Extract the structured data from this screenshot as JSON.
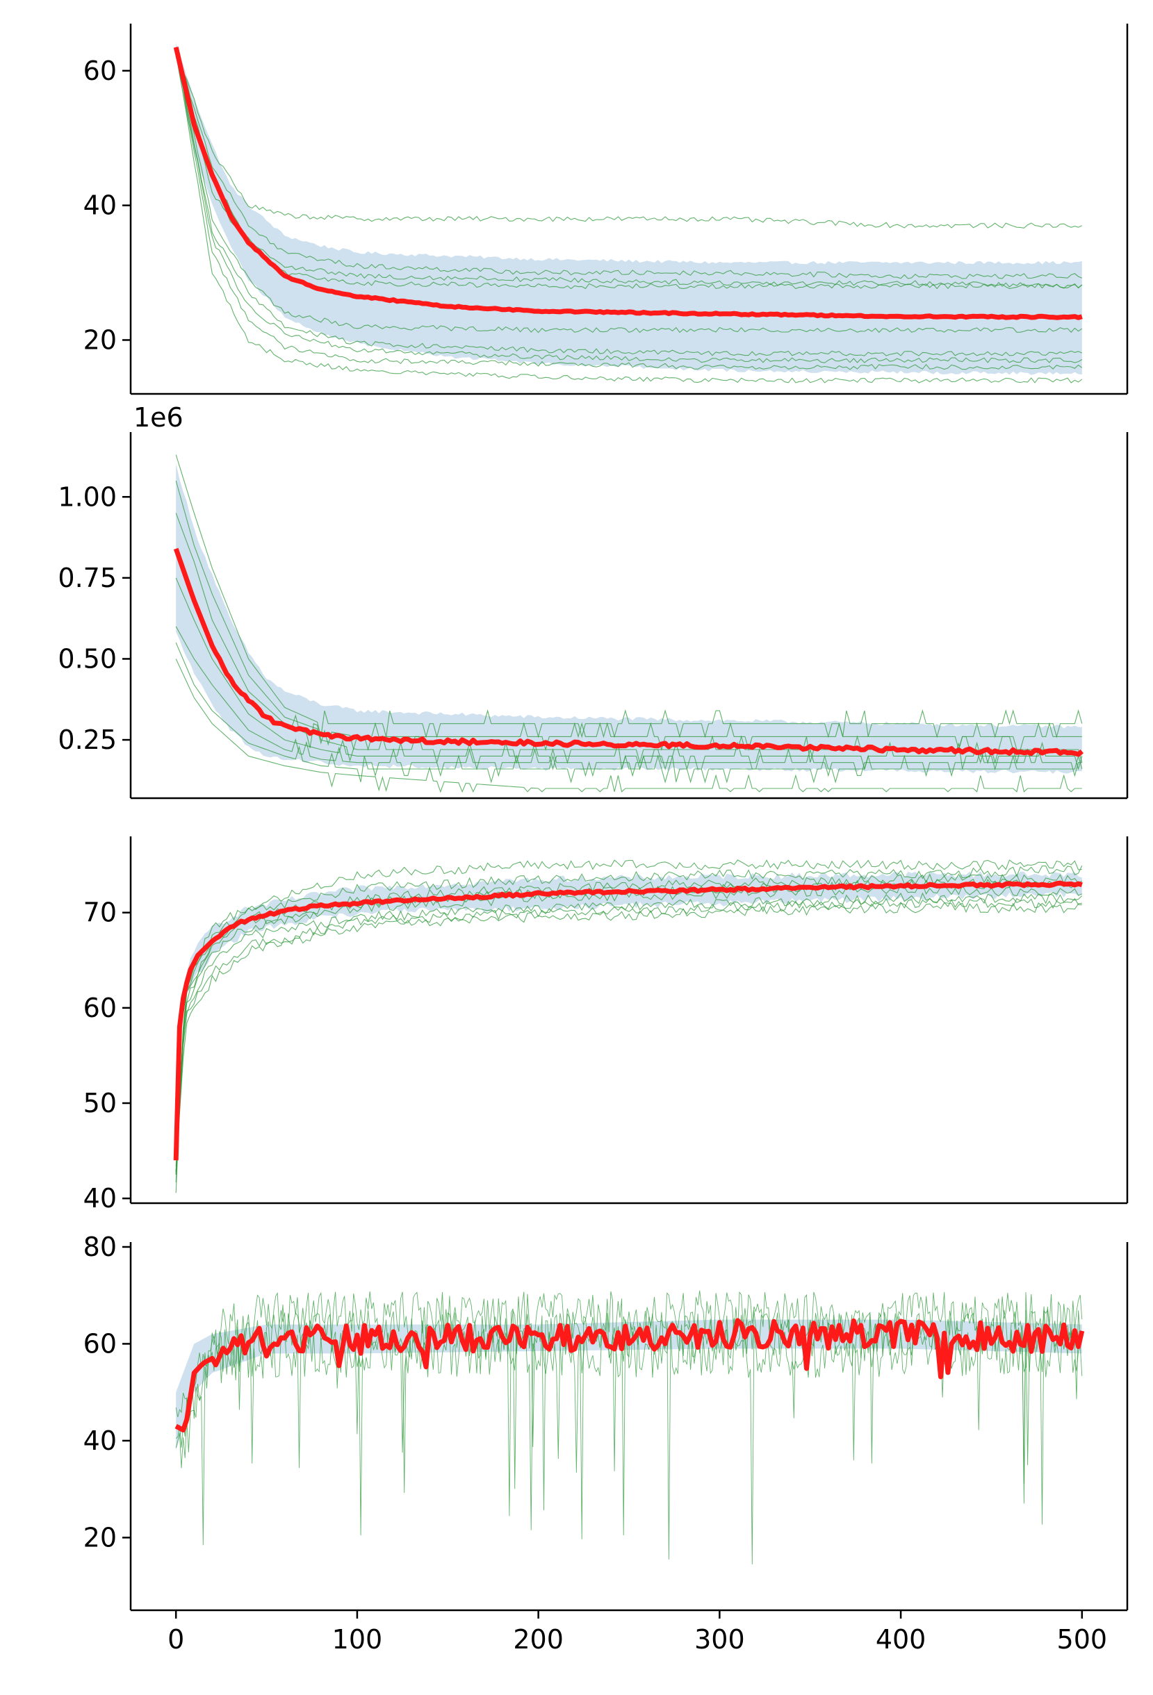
{
  "colors": {
    "mean_line": "#ff1a1a",
    "band": "#a8c6e0",
    "runs": "#2e9a3a",
    "axis": "#000000"
  },
  "chart_data": [
    {
      "type": "line",
      "panel": 1,
      "x_range": [
        -25,
        525
      ],
      "ylim": [
        12,
        67
      ],
      "yticks": [
        20,
        40,
        60
      ],
      "ytick_labels": [
        "20",
        "40",
        "60"
      ],
      "xticks_visible": false,
      "series": [
        {
          "role": "mean",
          "x": [
            0,
            10,
            20,
            30,
            40,
            60,
            80,
            100,
            150,
            200,
            300,
            400,
            500
          ],
          "values": [
            63.5,
            52,
            44.5,
            38.5,
            34.5,
            29.5,
            27.5,
            26.5,
            25,
            24.3,
            23.9,
            23.5,
            23.4
          ]
        }
      ],
      "band": {
        "x": [
          0,
          10,
          20,
          30,
          40,
          60,
          80,
          100,
          150,
          200,
          300,
          400,
          500
        ],
        "upper": [
          64,
          56,
          49,
          43,
          40,
          35.5,
          34,
          33,
          32.5,
          32,
          31.5,
          31.5,
          31.5
        ],
        "lower": [
          62,
          48,
          40,
          34,
          29,
          23.5,
          21,
          19.5,
          17.5,
          16.5,
          15.5,
          15.2,
          15
        ]
      },
      "runs": [
        {
          "x": [
            0,
            20,
            40,
            60,
            100,
            200,
            300,
            400,
            500
          ],
          "values": [
            63,
            48,
            40,
            38.5,
            38,
            38,
            38,
            37,
            37
          ]
        },
        {
          "x": [
            0,
            20,
            40,
            60,
            100,
            200,
            300,
            400,
            500
          ],
          "values": [
            63,
            46,
            37,
            33,
            31,
            30,
            30,
            29.5,
            29.5
          ]
        },
        {
          "x": [
            0,
            20,
            40,
            60,
            100,
            200,
            300,
            400,
            500
          ],
          "values": [
            63,
            44,
            35,
            31,
            29.5,
            29,
            28.5,
            28.5,
            28
          ]
        },
        {
          "x": [
            0,
            20,
            40,
            60,
            100,
            200,
            300,
            400,
            500
          ],
          "values": [
            63,
            42,
            34,
            30,
            28.5,
            28,
            28,
            28,
            28
          ]
        },
        {
          "x": [
            0,
            20,
            40,
            60,
            100,
            200,
            300,
            400,
            500
          ],
          "values": [
            63,
            38,
            29,
            24,
            22,
            21.5,
            21.5,
            21.5,
            21.5
          ]
        },
        {
          "x": [
            0,
            20,
            40,
            60,
            100,
            200,
            300,
            400,
            500
          ],
          "values": [
            63,
            36,
            27,
            22,
            19.5,
            18.5,
            18,
            18,
            18
          ]
        },
        {
          "x": [
            0,
            20,
            40,
            60,
            100,
            200,
            300,
            400,
            500
          ],
          "values": [
            63,
            35,
            25,
            21,
            18.5,
            17.5,
            17,
            17,
            17
          ]
        },
        {
          "x": [
            0,
            20,
            40,
            60,
            100,
            200,
            300,
            400,
            500
          ],
          "values": [
            63,
            33,
            23,
            19,
            17,
            16.5,
            16,
            16,
            16
          ]
        },
        {
          "x": [
            0,
            20,
            40,
            60,
            100,
            200,
            300,
            400,
            500
          ],
          "values": [
            63,
            30,
            20,
            17,
            15.5,
            14.5,
            14,
            14,
            14
          ]
        }
      ]
    },
    {
      "type": "line",
      "panel": 2,
      "x_range": [
        -25,
        525
      ],
      "ylim": [
        0.07,
        1.2
      ],
      "yticks": [
        0.25,
        0.5,
        0.75,
        1.0
      ],
      "ytick_labels": [
        "0.25",
        "0.50",
        "0.75",
        "1.00"
      ],
      "offset_text": "1e6",
      "xticks_visible": false,
      "series": [
        {
          "role": "mean",
          "x": [
            0,
            10,
            20,
            30,
            40,
            50,
            60,
            80,
            100,
            150,
            200,
            300,
            400,
            500
          ],
          "values": [
            0.84,
            0.68,
            0.54,
            0.44,
            0.37,
            0.32,
            0.29,
            0.265,
            0.255,
            0.245,
            0.24,
            0.232,
            0.22,
            0.21
          ]
        },
        {
          "role": "noise",
          "x": [
            100,
            150,
            200,
            300,
            400,
            500
          ],
          "values": [
            0.255,
            0.245,
            0.24,
            0.232,
            0.22,
            0.21
          ]
        }
      ],
      "band": {
        "x": [
          0,
          10,
          20,
          30,
          40,
          50,
          60,
          80,
          100,
          150,
          200,
          300,
          400,
          500
        ],
        "upper": [
          1.1,
          0.9,
          0.76,
          0.62,
          0.52,
          0.44,
          0.4,
          0.36,
          0.34,
          0.33,
          0.32,
          0.31,
          0.3,
          0.29
        ],
        "lower": [
          0.58,
          0.46,
          0.36,
          0.28,
          0.23,
          0.2,
          0.19,
          0.18,
          0.17,
          0.165,
          0.16,
          0.16,
          0.155,
          0.15
        ]
      },
      "runs": [
        {
          "x": [
            0,
            10,
            20,
            40,
            60,
            80,
            100,
            200,
            300,
            400,
            500
          ],
          "values": [
            1.13,
            0.95,
            0.78,
            0.5,
            0.35,
            0.3,
            0.3,
            0.3,
            0.3,
            0.3,
            0.3
          ]
        },
        {
          "x": [
            0,
            10,
            20,
            40,
            60,
            80,
            100,
            200,
            300,
            400,
            500
          ],
          "values": [
            1.05,
            0.85,
            0.7,
            0.45,
            0.32,
            0.28,
            0.26,
            0.26,
            0.26,
            0.26,
            0.26
          ]
        },
        {
          "x": [
            0,
            10,
            20,
            40,
            60,
            80,
            100,
            200,
            300,
            400,
            500
          ],
          "values": [
            0.95,
            0.8,
            0.62,
            0.4,
            0.3,
            0.25,
            0.22,
            0.22,
            0.22,
            0.22,
            0.22
          ]
        },
        {
          "x": [
            0,
            10,
            20,
            40,
            60,
            80,
            100,
            200,
            300,
            400,
            500
          ],
          "values": [
            0.75,
            0.62,
            0.5,
            0.33,
            0.25,
            0.22,
            0.2,
            0.2,
            0.2,
            0.2,
            0.2
          ]
        },
        {
          "x": [
            0,
            10,
            20,
            40,
            60,
            80,
            100,
            200,
            300,
            400,
            500
          ],
          "values": [
            0.6,
            0.5,
            0.42,
            0.28,
            0.22,
            0.19,
            0.18,
            0.18,
            0.18,
            0.18,
            0.18
          ]
        },
        {
          "x": [
            0,
            10,
            20,
            40,
            60,
            80,
            100,
            200,
            300,
            400,
            500
          ],
          "values": [
            0.55,
            0.42,
            0.34,
            0.24,
            0.2,
            0.17,
            0.16,
            0.16,
            0.16,
            0.16,
            0.16
          ]
        },
        {
          "x": [
            0,
            10,
            20,
            40,
            60,
            80,
            100,
            200,
            300,
            400,
            500
          ],
          "values": [
            0.5,
            0.38,
            0.3,
            0.2,
            0.17,
            0.15,
            0.14,
            0.1,
            0.1,
            0.1,
            0.1
          ]
        }
      ]
    },
    {
      "type": "line",
      "panel": 3,
      "x_range": [
        -25,
        525
      ],
      "ylim": [
        39.5,
        78
      ],
      "yticks": [
        40,
        50,
        60,
        70
      ],
      "ytick_labels": [
        "40",
        "50",
        "60",
        "70"
      ],
      "xticks_visible": false,
      "series": [
        {
          "role": "mean",
          "x": [
            0,
            1,
            2,
            3,
            5,
            8,
            12,
            20,
            30,
            40,
            60,
            80,
            100,
            150,
            200,
            250,
            300,
            350,
            400,
            450,
            500
          ],
          "values": [
            44,
            54,
            58,
            60,
            62,
            64,
            65.5,
            67,
            68.5,
            69.3,
            70.2,
            70.7,
            71,
            71.5,
            72,
            72.2,
            72.4,
            72.6,
            72.8,
            72.9,
            73
          ]
        }
      ],
      "band": {
        "x": [
          0,
          3,
          8,
          20,
          40,
          80,
          100,
          200,
          300,
          400,
          500
        ],
        "upper": [
          45,
          61,
          65.5,
          68.5,
          70.5,
          72,
          72.5,
          73.5,
          73.8,
          74,
          74
        ],
        "lower": [
          43,
          59,
          62.5,
          65.5,
          68,
          69.5,
          70,
          70.5,
          71,
          71.5,
          72
        ]
      },
      "runs": [
        {
          "x": [
            0,
            5,
            20,
            40,
            100,
            200,
            300,
            400,
            500
          ],
          "values": [
            41,
            62,
            68.5,
            70.5,
            74,
            75,
            75,
            75,
            75
          ]
        },
        {
          "x": [
            0,
            5,
            20,
            40,
            100,
            200,
            300,
            400,
            500
          ],
          "values": [
            42,
            61.5,
            67.5,
            70,
            72.5,
            73.5,
            74,
            74,
            74.5
          ]
        },
        {
          "x": [
            0,
            5,
            20,
            40,
            100,
            200,
            300,
            400,
            500
          ],
          "values": [
            43,
            61,
            67,
            69.5,
            71.5,
            72.5,
            73,
            73.5,
            73.5
          ]
        },
        {
          "x": [
            0,
            5,
            20,
            40,
            100,
            200,
            300,
            400,
            500
          ],
          "values": [
            43,
            60.5,
            66.5,
            69,
            71,
            72,
            72.5,
            73,
            73
          ]
        },
        {
          "x": [
            0,
            5,
            20,
            40,
            100,
            200,
            300,
            400,
            500
          ],
          "values": [
            43,
            60,
            66,
            68.5,
            70.5,
            71.5,
            72,
            72.5,
            72
          ]
        },
        {
          "x": [
            0,
            5,
            20,
            40,
            100,
            200,
            300,
            400,
            500
          ],
          "values": [
            43,
            59.5,
            65,
            67.5,
            69.5,
            70.5,
            71,
            71.5,
            71.5
          ]
        },
        {
          "x": [
            0,
            5,
            20,
            40,
            100,
            200,
            300,
            400,
            500
          ],
          "values": [
            43,
            59,
            64,
            66.5,
            69,
            70,
            70.5,
            71,
            71
          ]
        },
        {
          "x": [
            0,
            5,
            20,
            40,
            100,
            200,
            300,
            400,
            500
          ],
          "values": [
            43,
            58,
            63,
            66,
            68.5,
            69.5,
            70,
            70.5,
            70.5
          ]
        }
      ]
    },
    {
      "type": "line",
      "panel": 4,
      "x_range": [
        -25,
        525
      ],
      "ylim": [
        5,
        81
      ],
      "yticks": [
        20,
        40,
        60,
        80
      ],
      "ytick_labels": [
        "20",
        "40",
        "60",
        "80"
      ],
      "xticks": [
        0,
        100,
        200,
        300,
        400,
        500
      ],
      "xtick_labels": [
        "0",
        "100",
        "200",
        "300",
        "400",
        "500"
      ],
      "xticks_visible": true,
      "series": [
        {
          "role": "mean",
          "x": [
            0,
            5,
            10,
            15,
            20,
            30,
            40,
            50,
            70,
            100,
            150,
            200,
            300,
            400,
            500
          ],
          "values": [
            43,
            42,
            54,
            56,
            57,
            59,
            60,
            61,
            61,
            61,
            61,
            61.5,
            62,
            62,
            61
          ]
        }
      ],
      "band": {
        "x": [
          0,
          10,
          20,
          50,
          100,
          200,
          300,
          400,
          500
        ],
        "upper": [
          50,
          60,
          62,
          64,
          64,
          64,
          65,
          65,
          64
        ],
        "lower": [
          38,
          50,
          54,
          58,
          58,
          58.5,
          59,
          59,
          58
        ]
      },
      "runs": [
        {
          "x": [
            0,
            20,
            50,
            100,
            200,
            300,
            400,
            500
          ],
          "values": [
            45,
            62,
            66,
            66,
            66,
            66,
            66,
            66
          ]
        },
        {
          "x": [
            0,
            20,
            50,
            100,
            200,
            300,
            400,
            500
          ],
          "values": [
            40,
            58,
            62,
            62,
            62,
            62,
            62,
            62
          ]
        },
        {
          "x": [
            0,
            20,
            50,
            100,
            200,
            300,
            400,
            500
          ],
          "values": [
            35,
            55,
            58,
            58,
            58,
            58,
            58,
            58
          ]
        }
      ]
    }
  ]
}
